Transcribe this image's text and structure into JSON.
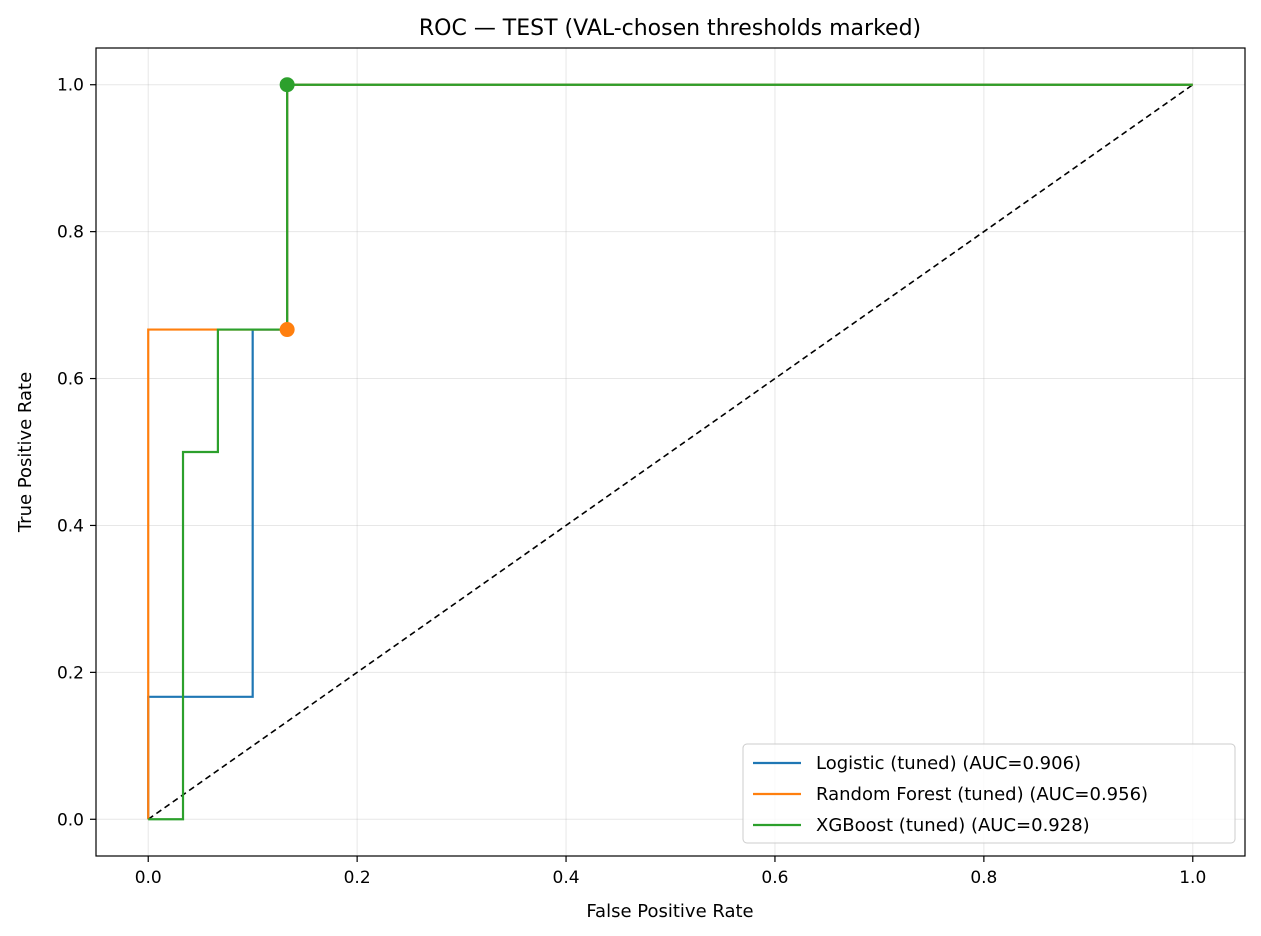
{
  "chart_data": {
    "type": "line",
    "title": "ROC — TEST (VAL-chosen thresholds marked)",
    "xlabel": "False Positive Rate",
    "ylabel": "True Positive Rate",
    "xlim": [
      -0.05,
      1.05
    ],
    "ylim": [
      -0.05,
      1.05
    ],
    "xticks": [
      "0.0",
      "0.2",
      "0.4",
      "0.6",
      "0.8",
      "1.0"
    ],
    "yticks": [
      "0.0",
      "0.2",
      "0.4",
      "0.6",
      "0.8",
      "1.0"
    ],
    "grid": true,
    "legend_position": "lower-right",
    "series": [
      {
        "name": "Logistic (tuned) (AUC=0.906)",
        "color": "#1f77b4",
        "x": [
          0.0,
          0.0,
          0.1,
          0.1,
          0.133,
          0.133,
          1.0
        ],
        "y": [
          0.0,
          0.1667,
          0.1667,
          0.6667,
          0.6667,
          1.0,
          1.0
        ]
      },
      {
        "name": "Random Forest (tuned) (AUC=0.956)",
        "color": "#ff7f0e",
        "x": [
          0.0,
          0.0,
          0.133,
          0.133,
          1.0
        ],
        "y": [
          0.0,
          0.6667,
          0.6667,
          1.0,
          1.0
        ]
      },
      {
        "name": "XGBoost (tuned) (AUC=0.928)",
        "color": "#2ca02c",
        "x": [
          0.0,
          0.0333,
          0.0333,
          0.0667,
          0.0667,
          0.133,
          0.133,
          1.0
        ],
        "y": [
          0.0,
          0.0,
          0.5,
          0.5,
          0.6667,
          0.6667,
          1.0,
          1.0
        ]
      }
    ],
    "chance_line": {
      "x": [
        0.0,
        1.0
      ],
      "y": [
        0.0,
        1.0
      ],
      "color": "#000000"
    },
    "threshold_markers": [
      {
        "series": "Random Forest (tuned) (AUC=0.956)",
        "x": 0.133,
        "y": 0.6667,
        "color": "#ff7f0e"
      },
      {
        "series": "XGBoost (tuned) (AUC=0.928)",
        "x": 0.133,
        "y": 1.0,
        "color": "#2ca02c"
      }
    ]
  }
}
